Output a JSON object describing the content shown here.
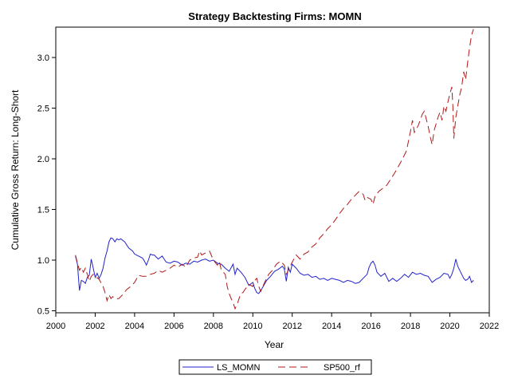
{
  "chart_data": {
    "type": "line",
    "title": "Strategy Backtesting  Firms: MOMN",
    "xlabel": "Year",
    "ylabel": "Cumulative Gross Return: Long-Short",
    "xlim": [
      2000,
      2022
    ],
    "ylim": [
      0.48,
      3.3
    ],
    "xticks": [
      2000,
      2002,
      2004,
      2006,
      2008,
      2010,
      2012,
      2014,
      2016,
      2018,
      2020,
      2022
    ],
    "yticks": [
      0.5,
      1.0,
      1.5,
      2.0,
      2.5,
      3.0
    ],
    "ytick_labels": [
      "0.5",
      "1.0",
      "1.5",
      "2.0",
      "2.5",
      "3.0"
    ],
    "grid": false,
    "legend_position": "bottom",
    "series": [
      {
        "name": "LS_MOMN",
        "color": "#2222cc",
        "dash": "solid",
        "points": [
          [
            2001.0,
            1.04
          ],
          [
            2001.1,
            0.96
          ],
          [
            2001.2,
            0.7
          ],
          [
            2001.3,
            0.8
          ],
          [
            2001.4,
            0.79
          ],
          [
            2001.5,
            0.77
          ],
          [
            2001.6,
            0.83
          ],
          [
            2001.7,
            0.85
          ],
          [
            2001.8,
            1.01
          ],
          [
            2001.9,
            0.92
          ],
          [
            2002.0,
            0.83
          ],
          [
            2002.1,
            0.87
          ],
          [
            2002.2,
            0.82
          ],
          [
            2002.3,
            0.86
          ],
          [
            2002.4,
            0.92
          ],
          [
            2002.5,
            1.02
          ],
          [
            2002.6,
            1.09
          ],
          [
            2002.7,
            1.18
          ],
          [
            2002.8,
            1.22
          ],
          [
            2002.9,
            1.21
          ],
          [
            2003.0,
            1.18
          ],
          [
            2003.1,
            1.21
          ],
          [
            2003.2,
            1.2
          ],
          [
            2003.3,
            1.21
          ],
          [
            2003.5,
            1.18
          ],
          [
            2003.7,
            1.12
          ],
          [
            2003.9,
            1.09
          ],
          [
            2004.0,
            1.06
          ],
          [
            2004.2,
            1.04
          ],
          [
            2004.4,
            1.02
          ],
          [
            2004.5,
            0.99
          ],
          [
            2004.6,
            0.95
          ],
          [
            2004.7,
            1.0
          ],
          [
            2004.8,
            1.06
          ],
          [
            2004.9,
            1.05
          ],
          [
            2005.0,
            1.05
          ],
          [
            2005.2,
            1.01
          ],
          [
            2005.4,
            1.04
          ],
          [
            2005.6,
            0.98
          ],
          [
            2005.8,
            0.97
          ],
          [
            2006.0,
            0.99
          ],
          [
            2006.2,
            0.98
          ],
          [
            2006.4,
            0.95
          ],
          [
            2006.6,
            0.97
          ],
          [
            2006.8,
            0.96
          ],
          [
            2007.0,
            0.99
          ],
          [
            2007.2,
            0.98
          ],
          [
            2007.4,
            1.0
          ],
          [
            2007.6,
            1.01
          ],
          [
            2007.8,
            0.99
          ],
          [
            2008.0,
            1.0
          ],
          [
            2008.2,
            0.97
          ],
          [
            2008.4,
            0.96
          ],
          [
            2008.6,
            0.92
          ],
          [
            2008.8,
            0.89
          ],
          [
            2009.0,
            0.96
          ],
          [
            2009.1,
            0.86
          ],
          [
            2009.2,
            0.92
          ],
          [
            2009.4,
            0.88
          ],
          [
            2009.6,
            0.83
          ],
          [
            2009.8,
            0.75
          ],
          [
            2010.0,
            0.78
          ],
          [
            2010.1,
            0.72
          ],
          [
            2010.2,
            0.68
          ],
          [
            2010.3,
            0.67
          ],
          [
            2010.5,
            0.73
          ],
          [
            2010.7,
            0.8
          ],
          [
            2010.9,
            0.84
          ],
          [
            2011.1,
            0.89
          ],
          [
            2011.3,
            0.91
          ],
          [
            2011.5,
            0.94
          ],
          [
            2011.6,
            0.91
          ],
          [
            2011.7,
            0.79
          ],
          [
            2011.8,
            0.93
          ],
          [
            2011.9,
            0.88
          ],
          [
            2012.0,
            0.96
          ],
          [
            2012.2,
            0.92
          ],
          [
            2012.4,
            0.87
          ],
          [
            2012.6,
            0.85
          ],
          [
            2012.8,
            0.86
          ],
          [
            2013.0,
            0.83
          ],
          [
            2013.2,
            0.84
          ],
          [
            2013.4,
            0.81
          ],
          [
            2013.6,
            0.82
          ],
          [
            2013.8,
            0.8
          ],
          [
            2014.0,
            0.82
          ],
          [
            2014.2,
            0.81
          ],
          [
            2014.4,
            0.8
          ],
          [
            2014.6,
            0.78
          ],
          [
            2014.8,
            0.8
          ],
          [
            2015.0,
            0.79
          ],
          [
            2015.2,
            0.77
          ],
          [
            2015.4,
            0.78
          ],
          [
            2015.6,
            0.82
          ],
          [
            2015.8,
            0.86
          ],
          [
            2015.9,
            0.93
          ],
          [
            2016.0,
            0.97
          ],
          [
            2016.1,
            0.99
          ],
          [
            2016.2,
            0.95
          ],
          [
            2016.3,
            0.88
          ],
          [
            2016.5,
            0.84
          ],
          [
            2016.7,
            0.87
          ],
          [
            2016.9,
            0.79
          ],
          [
            2017.1,
            0.82
          ],
          [
            2017.3,
            0.79
          ],
          [
            2017.5,
            0.82
          ],
          [
            2017.7,
            0.86
          ],
          [
            2017.9,
            0.83
          ],
          [
            2018.1,
            0.88
          ],
          [
            2018.3,
            0.86
          ],
          [
            2018.5,
            0.87
          ],
          [
            2018.7,
            0.85
          ],
          [
            2018.9,
            0.84
          ],
          [
            2019.1,
            0.78
          ],
          [
            2019.3,
            0.81
          ],
          [
            2019.5,
            0.83
          ],
          [
            2019.7,
            0.87
          ],
          [
            2019.9,
            0.86
          ],
          [
            2020.0,
            0.82
          ],
          [
            2020.1,
            0.86
          ],
          [
            2020.2,
            0.92
          ],
          [
            2020.3,
            1.01
          ],
          [
            2020.4,
            0.94
          ],
          [
            2020.5,
            0.9
          ],
          [
            2020.6,
            0.86
          ],
          [
            2020.7,
            0.82
          ],
          [
            2020.8,
            0.8
          ],
          [
            2020.9,
            0.81
          ],
          [
            2021.0,
            0.84
          ],
          [
            2021.1,
            0.78
          ],
          [
            2021.2,
            0.8
          ]
        ]
      },
      {
        "name": "SP500_rf",
        "color": "#b01818",
        "dash": "dashed",
        "points": [
          [
            2001.0,
            1.05
          ],
          [
            2001.1,
            0.97
          ],
          [
            2001.2,
            0.9
          ],
          [
            2001.3,
            0.93
          ],
          [
            2001.4,
            0.88
          ],
          [
            2001.5,
            0.92
          ],
          [
            2001.6,
            0.86
          ],
          [
            2001.7,
            0.79
          ],
          [
            2001.8,
            0.84
          ],
          [
            2001.9,
            0.86
          ],
          [
            2002.0,
            0.84
          ],
          [
            2002.2,
            0.81
          ],
          [
            2002.4,
            0.74
          ],
          [
            2002.5,
            0.68
          ],
          [
            2002.6,
            0.6
          ],
          [
            2002.7,
            0.66
          ],
          [
            2002.8,
            0.62
          ],
          [
            2002.9,
            0.64
          ],
          [
            2003.0,
            0.62
          ],
          [
            2003.2,
            0.62
          ],
          [
            2003.4,
            0.66
          ],
          [
            2003.6,
            0.71
          ],
          [
            2003.8,
            0.74
          ],
          [
            2004.0,
            0.78
          ],
          [
            2004.2,
            0.85
          ],
          [
            2004.4,
            0.84
          ],
          [
            2004.6,
            0.84
          ],
          [
            2004.8,
            0.86
          ],
          [
            2005.0,
            0.87
          ],
          [
            2005.2,
            0.9
          ],
          [
            2005.4,
            0.88
          ],
          [
            2005.6,
            0.9
          ],
          [
            2005.8,
            0.92
          ],
          [
            2006.0,
            0.95
          ],
          [
            2006.2,
            0.93
          ],
          [
            2006.4,
            0.96
          ],
          [
            2006.6,
            0.93
          ],
          [
            2006.8,
            1.0
          ],
          [
            2007.0,
            1.02
          ],
          [
            2007.2,
            1.03
          ],
          [
            2007.3,
            1.09
          ],
          [
            2007.4,
            1.05
          ],
          [
            2007.6,
            1.07
          ],
          [
            2007.8,
            1.09
          ],
          [
            2008.0,
            1.0
          ],
          [
            2008.2,
            0.95
          ],
          [
            2008.3,
            0.99
          ],
          [
            2008.4,
            0.9
          ],
          [
            2008.6,
            0.86
          ],
          [
            2008.7,
            0.74
          ],
          [
            2008.8,
            0.67
          ],
          [
            2008.9,
            0.62
          ],
          [
            2009.0,
            0.58
          ],
          [
            2009.1,
            0.52
          ],
          [
            2009.2,
            0.56
          ],
          [
            2009.3,
            0.62
          ],
          [
            2009.4,
            0.67
          ],
          [
            2009.5,
            0.68
          ],
          [
            2009.6,
            0.71
          ],
          [
            2009.8,
            0.76
          ],
          [
            2010.0,
            0.74
          ],
          [
            2010.1,
            0.8
          ],
          [
            2010.2,
            0.82
          ],
          [
            2010.3,
            0.74
          ],
          [
            2010.4,
            0.69
          ],
          [
            2010.6,
            0.78
          ],
          [
            2010.8,
            0.86
          ],
          [
            2011.0,
            0.9
          ],
          [
            2011.2,
            0.96
          ],
          [
            2011.4,
            0.99
          ],
          [
            2011.6,
            0.95
          ],
          [
            2011.7,
            0.86
          ],
          [
            2011.8,
            0.9
          ],
          [
            2012.0,
            0.98
          ],
          [
            2012.2,
            1.05
          ],
          [
            2012.4,
            1.01
          ],
          [
            2012.6,
            1.06
          ],
          [
            2012.8,
            1.08
          ],
          [
            2013.0,
            1.13
          ],
          [
            2013.2,
            1.16
          ],
          [
            2013.4,
            1.22
          ],
          [
            2013.6,
            1.26
          ],
          [
            2013.8,
            1.31
          ],
          [
            2014.0,
            1.35
          ],
          [
            2014.2,
            1.4
          ],
          [
            2014.4,
            1.46
          ],
          [
            2014.6,
            1.51
          ],
          [
            2014.8,
            1.55
          ],
          [
            2015.0,
            1.6
          ],
          [
            2015.2,
            1.64
          ],
          [
            2015.4,
            1.68
          ],
          [
            2015.6,
            1.65
          ],
          [
            2015.7,
            1.59
          ],
          [
            2015.8,
            1.62
          ],
          [
            2016.0,
            1.6
          ],
          [
            2016.1,
            1.55
          ],
          [
            2016.2,
            1.63
          ],
          [
            2016.4,
            1.68
          ],
          [
            2016.6,
            1.71
          ],
          [
            2016.8,
            1.74
          ],
          [
            2017.0,
            1.8
          ],
          [
            2017.2,
            1.86
          ],
          [
            2017.4,
            1.93
          ],
          [
            2017.6,
            2.0
          ],
          [
            2017.8,
            2.08
          ],
          [
            2018.0,
            2.27
          ],
          [
            2018.1,
            2.38
          ],
          [
            2018.2,
            2.26
          ],
          [
            2018.4,
            2.33
          ],
          [
            2018.6,
            2.44
          ],
          [
            2018.7,
            2.47
          ],
          [
            2018.9,
            2.32
          ],
          [
            2019.0,
            2.22
          ],
          [
            2019.1,
            2.14
          ],
          [
            2019.2,
            2.28
          ],
          [
            2019.4,
            2.41
          ],
          [
            2019.5,
            2.46
          ],
          [
            2019.6,
            2.38
          ],
          [
            2019.7,
            2.52
          ],
          [
            2019.8,
            2.47
          ],
          [
            2019.9,
            2.56
          ],
          [
            2020.0,
            2.64
          ],
          [
            2020.1,
            2.71
          ],
          [
            2020.15,
            2.52
          ],
          [
            2020.2,
            2.2
          ],
          [
            2020.3,
            2.41
          ],
          [
            2020.4,
            2.52
          ],
          [
            2020.5,
            2.63
          ],
          [
            2020.6,
            2.71
          ],
          [
            2020.7,
            2.86
          ],
          [
            2020.8,
            2.78
          ],
          [
            2020.9,
            2.95
          ],
          [
            2021.0,
            3.1
          ],
          [
            2021.1,
            3.22
          ],
          [
            2021.2,
            3.28
          ]
        ]
      }
    ]
  }
}
